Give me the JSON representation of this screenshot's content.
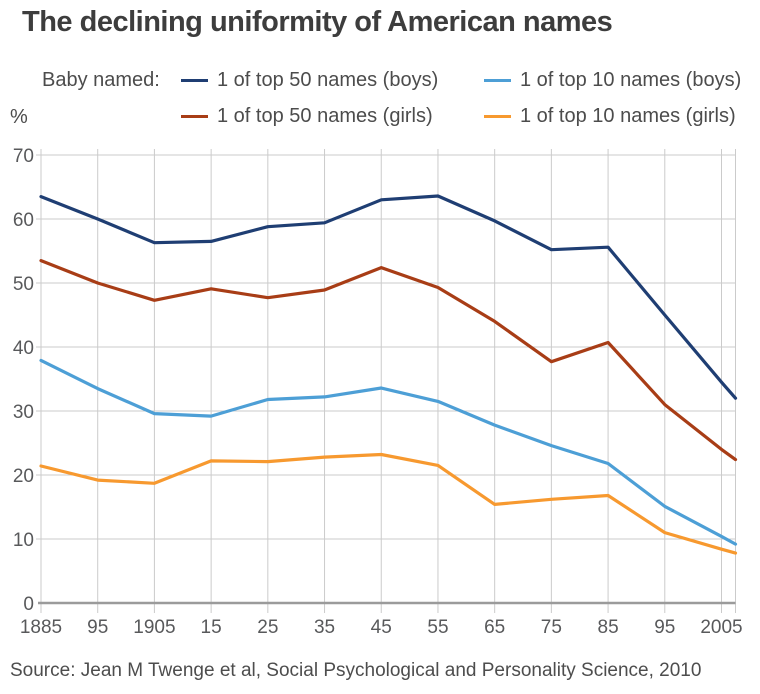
{
  "title": "The declining uniformity of American names",
  "y_axis_unit": "%",
  "legend": {
    "prefix": "Baby named:",
    "items": [
      {
        "key": "top50-boys",
        "label": "1 of top 50 names (boys)",
        "color": "#1f3e73"
      },
      {
        "key": "top10-boys",
        "label": "1 of top 10 names (boys)",
        "color": "#4d9fd6"
      },
      {
        "key": "top50-girls",
        "label": "1 of top 50 names (girls)",
        "color": "#a83d16"
      },
      {
        "key": "top10-girls",
        "label": "1 of top 10 names (girls)",
        "color": "#f7992f"
      }
    ]
  },
  "source": "Source: Jean M Twenge et al, Social Psychological and Personality Science, 2010",
  "colors": {
    "gridline": "#cbcbcb",
    "zero_axis": "#9b9b9b",
    "axis_text": "#58595b",
    "title_text": "#3d3d3d"
  },
  "chart_data": {
    "type": "line",
    "title": "The declining uniformity of American names",
    "xlabel": "",
    "ylabel": "%",
    "x_tick_labels": [
      "1885",
      "95",
      "1905",
      "15",
      "25",
      "35",
      "45",
      "55",
      "65",
      "75",
      "85",
      "95",
      "2005"
    ],
    "years": [
      1885,
      1895,
      1905,
      1915,
      1925,
      1935,
      1945,
      1955,
      1965,
      1975,
      1985,
      1995,
      2005
    ],
    "y_ticks": [
      0,
      10,
      20,
      30,
      40,
      50,
      60,
      70
    ],
    "ylim": [
      0,
      70
    ],
    "grid": true,
    "legend_position": "top",
    "lines_extend_to_plot_right_edge": true,
    "series": [
      {
        "name": "1 of top 50 names (boys)",
        "key": "top50-boys",
        "color": "#1f3e73",
        "values": [
          63.5,
          60.0,
          56.3,
          56.5,
          58.8,
          59.4,
          63.0,
          63.6,
          59.7,
          55.2,
          55.6,
          45.0,
          34.5
        ],
        "edge_value": 32.0
      },
      {
        "name": "1 of top 50 names (girls)",
        "key": "top50-girls",
        "color": "#a83d16",
        "values": [
          53.5,
          50.0,
          47.3,
          49.1,
          47.7,
          48.9,
          52.4,
          49.3,
          44.0,
          37.7,
          40.7,
          31.0,
          24.0
        ],
        "edge_value": 22.4
      },
      {
        "name": "1 of top 10 names (boys)",
        "key": "top10-boys",
        "color": "#4d9fd6",
        "values": [
          37.9,
          33.5,
          29.6,
          29.2,
          31.8,
          32.2,
          33.6,
          31.5,
          27.8,
          24.6,
          21.8,
          15.1,
          10.4
        ],
        "edge_value": 9.2
      },
      {
        "name": "1 of top 10 names (girls)",
        "key": "top10-girls",
        "color": "#f7992f",
        "values": [
          21.4,
          19.2,
          18.7,
          22.2,
          22.1,
          22.8,
          23.2,
          21.5,
          15.4,
          16.2,
          16.8,
          11.0,
          8.4
        ],
        "edge_value": 7.8
      }
    ]
  }
}
